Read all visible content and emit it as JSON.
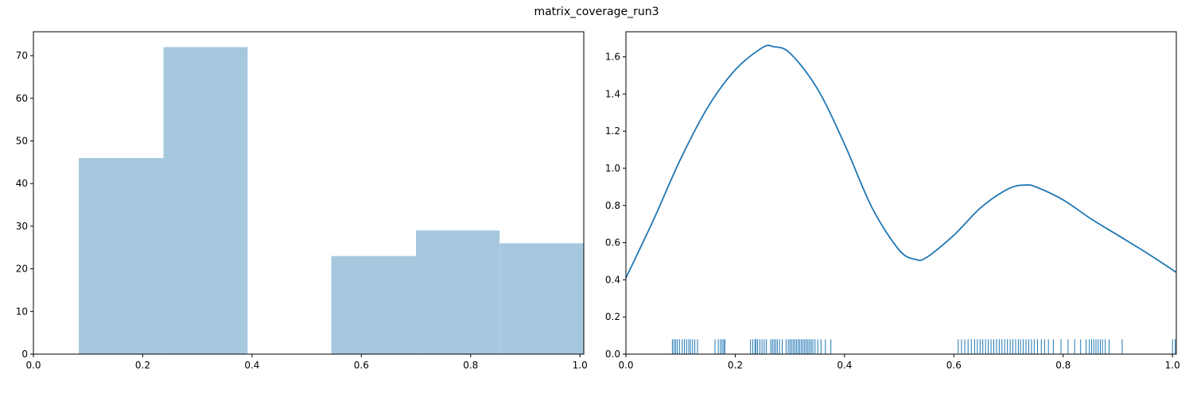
{
  "title": "matrix_coverage_run3",
  "colors": {
    "hist_fill": "#a6c8df",
    "kde_line": "#1f77b4",
    "rug": "#1f77b4",
    "axis": "#000000"
  },
  "chart_data": [
    {
      "type": "bar",
      "subtype": "histogram",
      "bins": [
        {
          "x0": 0.083,
          "x1": 0.238,
          "count": 46
        },
        {
          "x0": 0.238,
          "x1": 0.392,
          "count": 72
        },
        {
          "x0": 0.392,
          "x1": 0.545,
          "count": 0
        },
        {
          "x0": 0.545,
          "x1": 0.7,
          "count": 23
        },
        {
          "x0": 0.7,
          "x1": 0.853,
          "count": 29
        },
        {
          "x0": 0.853,
          "x1": 1.007,
          "count": 26
        }
      ],
      "xlim": [
        0.0,
        1.007
      ],
      "ylim": [
        0,
        75.6
      ],
      "xticks": [
        "0.0",
        "0.2",
        "0.4",
        "0.6",
        "0.8",
        "1.0"
      ],
      "xtick_values": [
        0.0,
        0.2,
        0.4,
        0.6,
        0.8,
        1.0
      ],
      "yticks": [
        "0",
        "10",
        "20",
        "30",
        "40",
        "50",
        "60",
        "70"
      ],
      "ytick_values": [
        0,
        10,
        20,
        30,
        40,
        50,
        60,
        70
      ],
      "grid": false
    },
    {
      "type": "line",
      "subtype": "kde-with-rug",
      "x": [
        0.0,
        0.05,
        0.1,
        0.15,
        0.2,
        0.25,
        0.27,
        0.3,
        0.35,
        0.4,
        0.45,
        0.5,
        0.53,
        0.55,
        0.6,
        0.65,
        0.7,
        0.73,
        0.75,
        0.8,
        0.85,
        0.9,
        0.95,
        1.007
      ],
      "y": [
        0.41,
        0.72,
        1.05,
        1.33,
        1.53,
        1.65,
        1.655,
        1.62,
        1.43,
        1.13,
        0.79,
        0.56,
        0.51,
        0.52,
        0.64,
        0.79,
        0.89,
        0.91,
        0.9,
        0.83,
        0.73,
        0.64,
        0.55,
        0.44
      ],
      "rug": [
        0.085,
        0.088,
        0.091,
        0.094,
        0.098,
        0.103,
        0.107,
        0.111,
        0.115,
        0.118,
        0.122,
        0.126,
        0.131,
        0.163,
        0.169,
        0.173,
        0.176,
        0.179,
        0.181,
        0.228,
        0.232,
        0.236,
        0.238,
        0.241,
        0.245,
        0.249,
        0.253,
        0.257,
        0.265,
        0.268,
        0.271,
        0.274,
        0.277,
        0.281,
        0.286,
        0.293,
        0.297,
        0.3,
        0.303,
        0.306,
        0.309,
        0.312,
        0.315,
        0.318,
        0.321,
        0.324,
        0.327,
        0.33,
        0.333,
        0.336,
        0.339,
        0.342,
        0.346,
        0.351,
        0.357,
        0.365,
        0.375,
        0.608,
        0.614,
        0.62,
        0.626,
        0.632,
        0.638,
        0.643,
        0.648,
        0.653,
        0.658,
        0.663,
        0.668,
        0.673,
        0.678,
        0.683,
        0.688,
        0.693,
        0.698,
        0.703,
        0.708,
        0.713,
        0.718,
        0.722,
        0.727,
        0.732,
        0.737,
        0.742,
        0.747,
        0.753,
        0.76,
        0.766,
        0.773,
        0.782,
        0.796,
        0.809,
        0.821,
        0.832,
        0.842,
        0.848,
        0.852,
        0.856,
        0.86,
        0.864,
        0.868,
        0.872,
        0.877,
        0.884,
        0.908,
        1.0,
        1.005
      ],
      "rug_height": 0.08,
      "xlim": [
        0.0,
        1.007
      ],
      "ylim": [
        0.0,
        1.735
      ],
      "xticks": [
        "0.0",
        "0.2",
        "0.4",
        "0.6",
        "0.8",
        "1.0"
      ],
      "xtick_values": [
        0.0,
        0.2,
        0.4,
        0.6,
        0.8,
        1.0
      ],
      "yticks": [
        "0.0",
        "0.2",
        "0.4",
        "0.6",
        "0.8",
        "1.0",
        "1.2",
        "1.4",
        "1.6"
      ],
      "ytick_values": [
        0.0,
        0.2,
        0.4,
        0.6,
        0.8,
        1.0,
        1.2,
        1.4,
        1.6
      ],
      "grid": false
    }
  ]
}
